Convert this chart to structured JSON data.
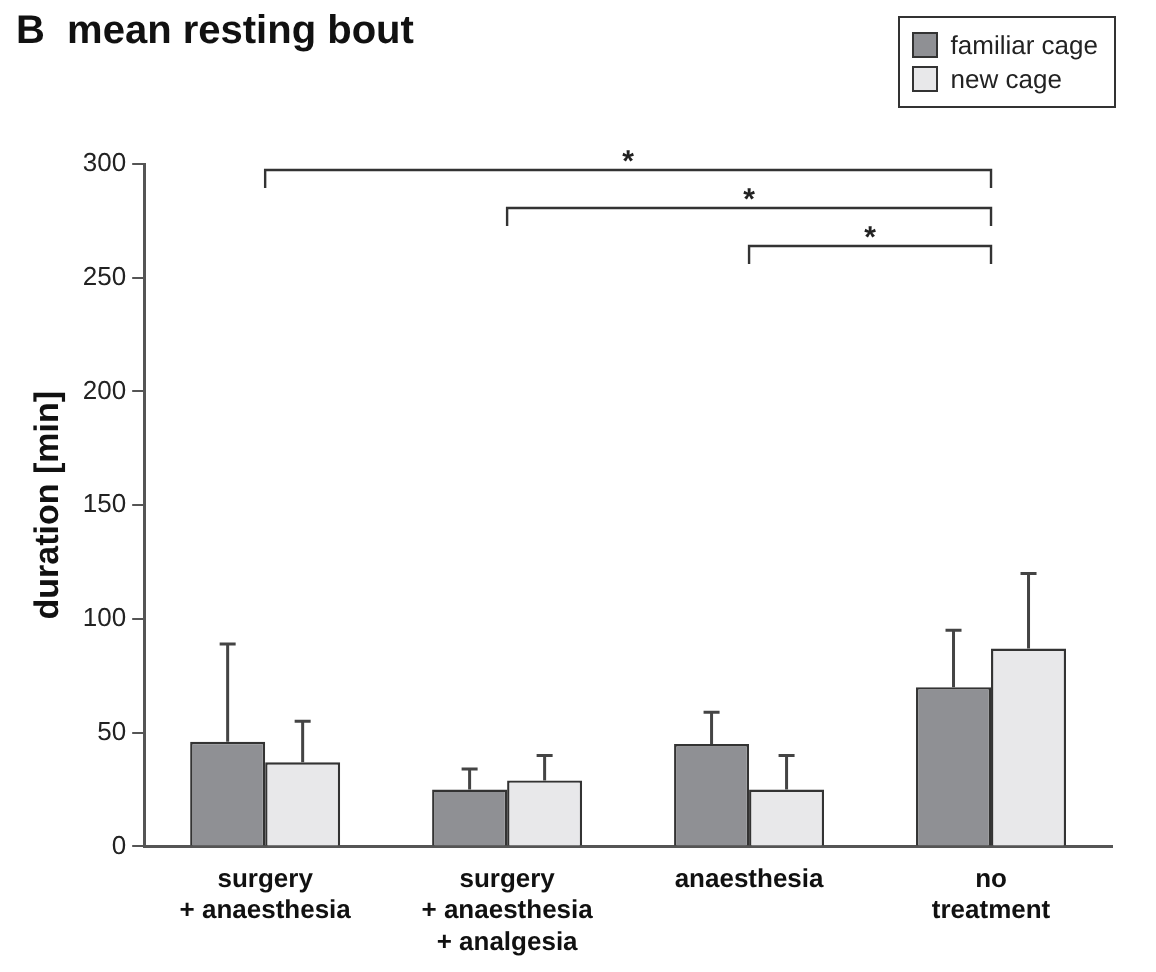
{
  "chart_data": {
    "type": "bar",
    "title": "B  mean resting bout",
    "ylabel": "duration [min]",
    "categories": [
      "surgery + anaesthesia",
      "surgery + anaesthesia + analgesia",
      "anaesthesia",
      "no treatment"
    ],
    "series": [
      {
        "name": "familiar cage",
        "color": "#8f9094",
        "values": [
          46,
          25,
          45,
          70
        ],
        "errors": [
          [
            46,
            89
          ],
          [
            25,
            34
          ],
          [
            45,
            59
          ],
          [
            70,
            95
          ]
        ]
      },
      {
        "name": "new cage",
        "color": "#e8e8ea",
        "values": [
          37,
          29,
          25,
          87
        ],
        "errors": [
          [
            37,
            55
          ],
          [
            29,
            40
          ],
          [
            25,
            40
          ],
          [
            87,
            120
          ]
        ]
      }
    ],
    "ylim": [
      0,
      300
    ],
    "yticks": [
      0,
      50,
      100,
      150,
      200,
      250,
      300
    ],
    "grid": false,
    "legend": "top right",
    "annotations": [
      "*",
      "*",
      "*"
    ]
  }
}
